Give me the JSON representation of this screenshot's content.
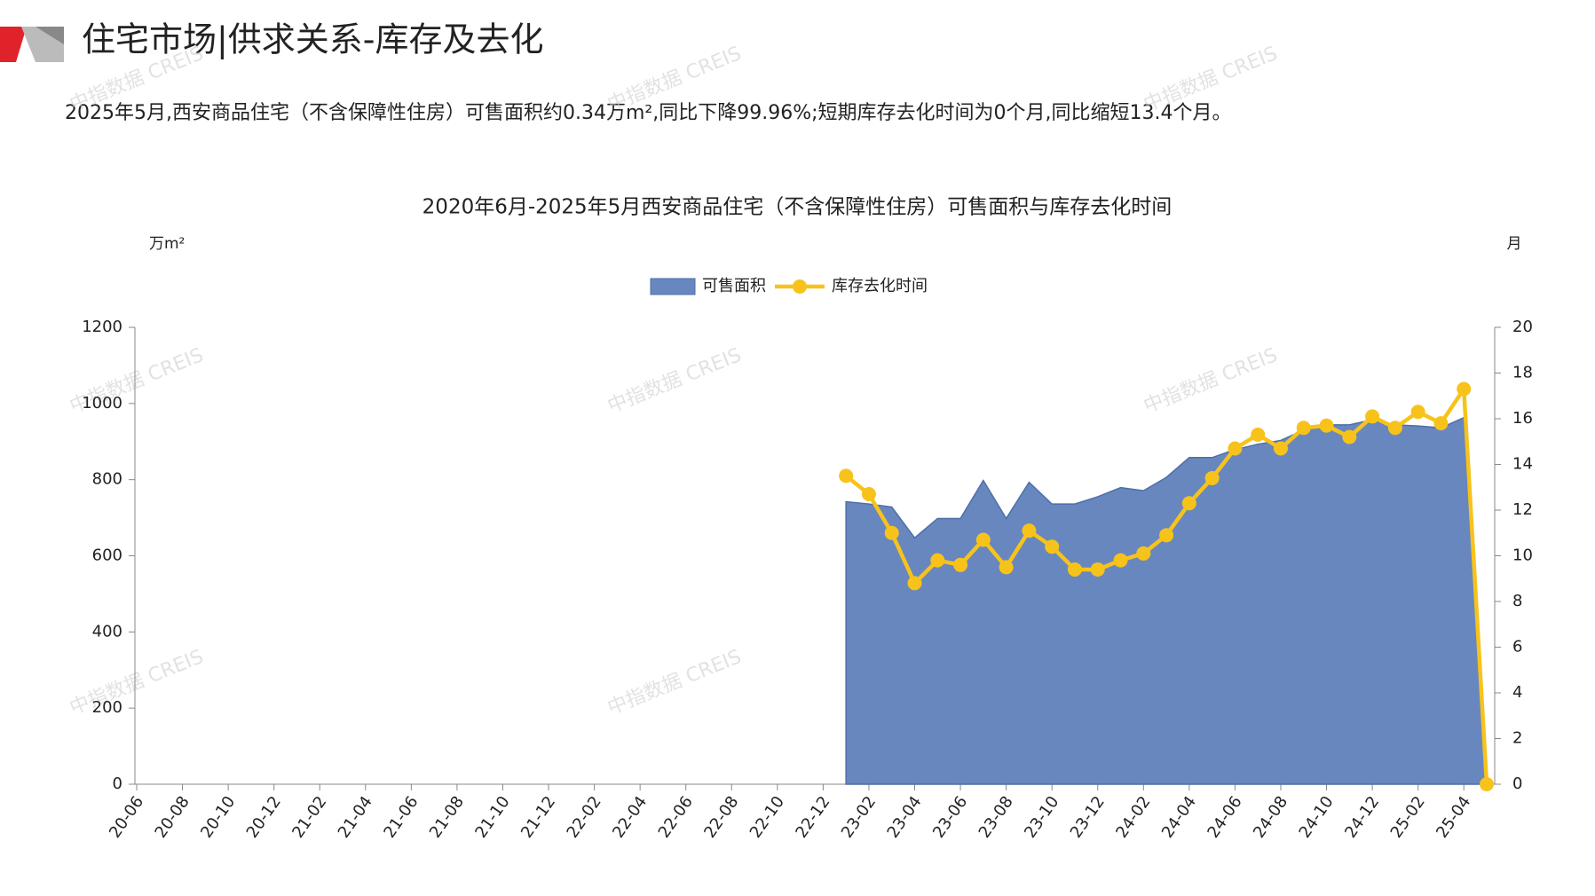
{
  "header": {
    "title": "住宅市场|供求关系-库存及去化",
    "subtitle": "2025年5月,西安商品住宅（不含保障性住房）可售面积约0.34万m²,同比下降99.96%;短期库存去化时间为0个月,同比缩短13.4个月。"
  },
  "watermark": "中指数据 CREIS",
  "chart_data": {
    "type": "area-line",
    "title": "2020年6月-2025年5月西安商品住宅（不含保障性住房）可售面积与库存去化时间",
    "ylabel": "万m²",
    "y2label": "月",
    "categories": [
      "20-06",
      null,
      "20-08",
      null,
      "20-10",
      null,
      "20-12",
      null,
      "21-02",
      null,
      "21-04",
      null,
      "21-06",
      null,
      "21-08",
      null,
      "21-10",
      null,
      "21-12",
      null,
      "22-02",
      null,
      "22-04",
      null,
      "22-06",
      null,
      "22-08",
      null,
      "22-10",
      null,
      "22-12",
      null,
      "23-02",
      null,
      "23-04",
      null,
      "23-06",
      null,
      "23-08",
      null,
      "23-10",
      null,
      "23-12",
      null,
      "24-02",
      null,
      "24-04",
      null,
      "24-06",
      null,
      "24-08",
      null,
      "24-10",
      null,
      "24-12",
      null,
      "25-02",
      null,
      "25-04",
      null
    ],
    "series": [
      {
        "name": "可售面积",
        "kind": "area",
        "color": "#6887be",
        "values": [
          null,
          null,
          null,
          null,
          null,
          null,
          null,
          null,
          null,
          null,
          null,
          null,
          null,
          null,
          null,
          null,
          null,
          null,
          null,
          null,
          null,
          null,
          null,
          null,
          null,
          null,
          null,
          null,
          null,
          null,
          null,
          742,
          736,
          728,
          647,
          698,
          698,
          798,
          698,
          793,
          736,
          736,
          755,
          779,
          771,
          806,
          858,
          858,
          879,
          893,
          903,
          930,
          944,
          944,
          957,
          944,
          941,
          936,
          963,
          0.34
        ]
      },
      {
        "name": "库存去化时间",
        "kind": "line",
        "axis": "y2",
        "color": "#f7c31b",
        "values": [
          null,
          null,
          null,
          null,
          null,
          null,
          null,
          null,
          null,
          null,
          null,
          null,
          null,
          null,
          null,
          null,
          null,
          null,
          null,
          null,
          null,
          null,
          null,
          null,
          null,
          null,
          null,
          null,
          null,
          null,
          null,
          13.5,
          12.7,
          11.0,
          8.8,
          9.8,
          9.6,
          10.7,
          9.5,
          11.1,
          10.4,
          9.4,
          9.4,
          9.8,
          10.1,
          10.9,
          12.3,
          13.4,
          14.7,
          15.3,
          14.7,
          15.6,
          15.7,
          15.2,
          16.1,
          15.6,
          16.3,
          15.8,
          17.3,
          0
        ]
      }
    ],
    "ylim": [
      0,
      1200
    ],
    "yticks": [
      0,
      200,
      400,
      600,
      800,
      1000,
      1200
    ],
    "y2lim": [
      0,
      20
    ],
    "y2ticks": [
      0,
      2,
      4,
      6,
      8,
      10,
      12,
      14,
      16,
      18,
      20
    ],
    "grid": false,
    "legend": "top"
  }
}
